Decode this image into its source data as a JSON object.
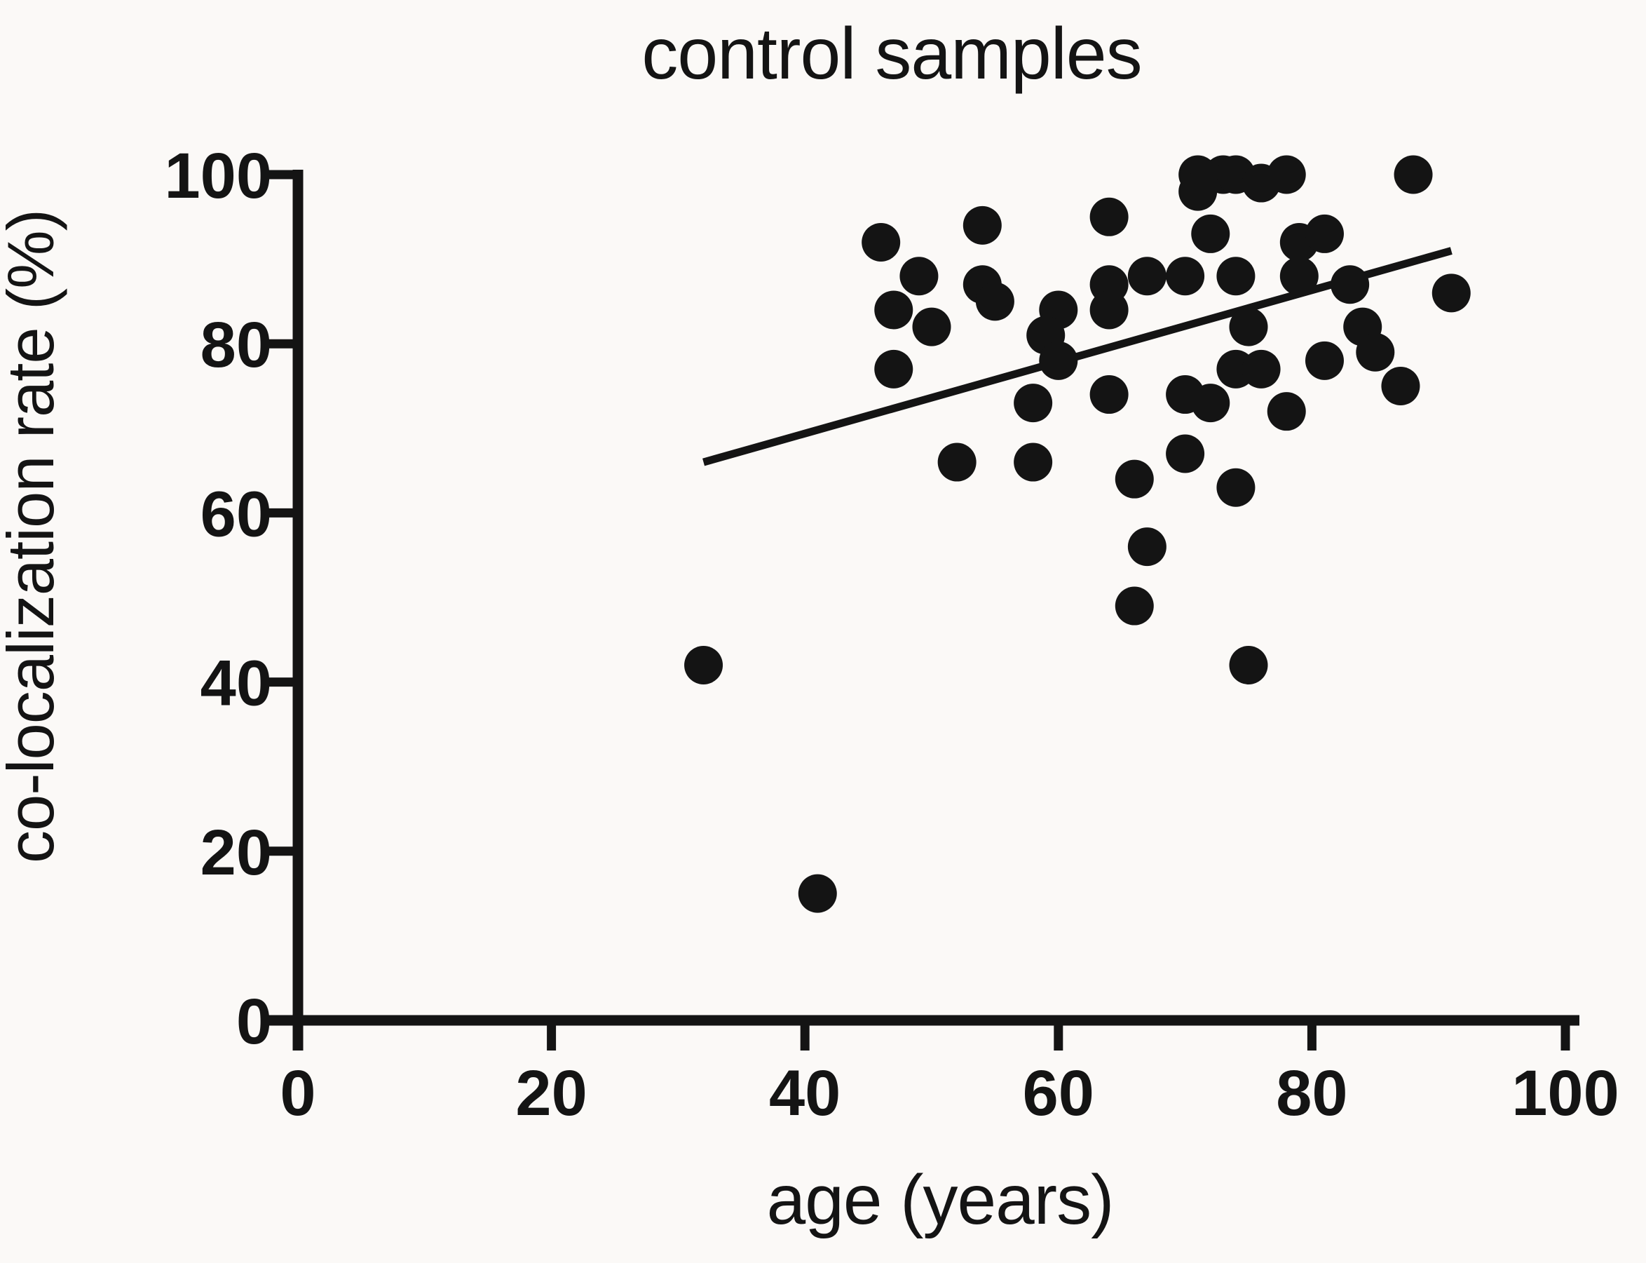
{
  "figure": {
    "title": "control samples",
    "background_color": "#fbf9f7",
    "ink_color": "#141414"
  },
  "chart_data": {
    "type": "scatter",
    "title": "control samples",
    "xlabel": "age (years)",
    "ylabel": "co-localization rate (%)",
    "xlim": [
      0,
      100
    ],
    "ylim": [
      0,
      100
    ],
    "x_ticks": [
      0,
      20,
      40,
      60,
      80,
      100
    ],
    "y_ticks": [
      0,
      20,
      40,
      60,
      80,
      100
    ],
    "grid": false,
    "legend": "none",
    "marker": {
      "shape": "circle",
      "color": "#141414",
      "radius_px": 27.5
    },
    "points": [
      [
        46,
        92
      ],
      [
        49,
        88
      ],
      [
        47,
        84
      ],
      [
        50,
        82
      ],
      [
        47,
        77
      ],
      [
        54,
        94
      ],
      [
        54,
        87
      ],
      [
        55,
        85
      ],
      [
        52,
        66
      ],
      [
        60,
        84
      ],
      [
        59,
        81
      ],
      [
        60,
        78
      ],
      [
        58,
        73
      ],
      [
        58,
        66
      ],
      [
        64,
        95
      ],
      [
        64,
        87
      ],
      [
        64,
        84
      ],
      [
        64,
        74
      ],
      [
        66,
        64
      ],
      [
        66,
        49
      ],
      [
        67,
        88
      ],
      [
        67,
        56
      ],
      [
        71,
        100
      ],
      [
        71,
        98
      ],
      [
        73,
        100
      ],
      [
        74,
        100
      ],
      [
        76,
        99
      ],
      [
        78,
        100
      ],
      [
        88,
        100
      ],
      [
        70,
        88
      ],
      [
        70,
        74
      ],
      [
        70,
        67
      ],
      [
        72,
        93
      ],
      [
        72,
        73
      ],
      [
        74,
        88
      ],
      [
        74,
        77
      ],
      [
        74,
        63
      ],
      [
        75,
        82
      ],
      [
        75,
        42
      ],
      [
        76,
        77
      ],
      [
        79,
        92
      ],
      [
        79,
        88
      ],
      [
        78,
        72
      ],
      [
        81,
        93
      ],
      [
        81,
        78
      ],
      [
        83,
        87
      ],
      [
        84,
        82
      ],
      [
        85,
        79
      ],
      [
        87,
        75
      ],
      [
        91,
        86
      ],
      [
        32,
        42
      ],
      [
        41,
        15
      ]
    ],
    "trend_line": {
      "x1": 32,
      "y1": 66,
      "x2": 91,
      "y2": 91
    }
  }
}
